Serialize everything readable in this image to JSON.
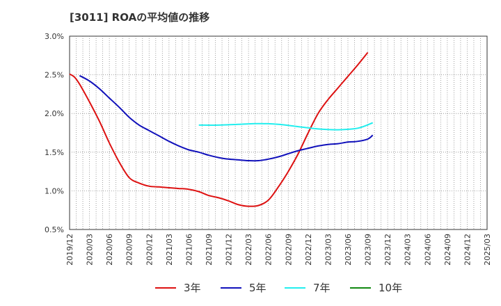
{
  "chart_data": {
    "type": "line",
    "title": "[3011]  ROAの平均値の推移",
    "y_ticks": [
      "3.0%",
      "2.5%",
      "2.0%",
      "1.5%",
      "1.0%",
      "0.5%"
    ],
    "ylim": [
      0.5,
      3.0
    ],
    "x_ticks": [
      "2019/12",
      "2020/03",
      "2020/06",
      "2020/09",
      "2020/12",
      "2021/03",
      "2021/06",
      "2021/09",
      "2021/12",
      "2022/03",
      "2022/06",
      "2022/09",
      "2022/12",
      "2023/03",
      "2023/06",
      "2023/09",
      "2023/12",
      "2024/03",
      "2024/06",
      "2024/09",
      "2024/12",
      "2025/03"
    ],
    "grid": true,
    "legend_position": "bottom",
    "series": [
      {
        "name": "3年",
        "color": "#dd1111",
        "points": [
          [
            0,
            2.51
          ],
          [
            0.5,
            2.47
          ],
          [
            1,
            2.38
          ],
          [
            2,
            2.15
          ],
          [
            3,
            1.9
          ],
          [
            4,
            1.62
          ],
          [
            5,
            1.37
          ],
          [
            6,
            1.17
          ],
          [
            7,
            1.1
          ],
          [
            8,
            1.06
          ],
          [
            9,
            1.05
          ],
          [
            10,
            1.04
          ],
          [
            11,
            1.03
          ],
          [
            12,
            1.02
          ],
          [
            13,
            0.99
          ],
          [
            14,
            0.94
          ],
          [
            15,
            0.91
          ],
          [
            16,
            0.87
          ],
          [
            17,
            0.82
          ],
          [
            18,
            0.8
          ],
          [
            19,
            0.81
          ],
          [
            20,
            0.88
          ],
          [
            21,
            1.05
          ],
          [
            22,
            1.25
          ],
          [
            23,
            1.48
          ],
          [
            24,
            1.75
          ],
          [
            25,
            2.0
          ],
          [
            26,
            2.18
          ],
          [
            27,
            2.33
          ],
          [
            28,
            2.48
          ],
          [
            29,
            2.63
          ],
          [
            30,
            2.79
          ]
        ]
      },
      {
        "name": "5年",
        "color": "#1111bb",
        "points": [
          [
            1,
            2.49
          ],
          [
            2,
            2.42
          ],
          [
            3,
            2.32
          ],
          [
            4,
            2.2
          ],
          [
            5,
            2.08
          ],
          [
            6,
            1.95
          ],
          [
            7,
            1.85
          ],
          [
            8,
            1.78
          ],
          [
            9,
            1.71
          ],
          [
            10,
            1.64
          ],
          [
            11,
            1.58
          ],
          [
            12,
            1.53
          ],
          [
            13,
            1.5
          ],
          [
            14,
            1.46
          ],
          [
            15,
            1.43
          ],
          [
            16,
            1.41
          ],
          [
            17,
            1.4
          ],
          [
            18,
            1.39
          ],
          [
            19,
            1.39
          ],
          [
            20,
            1.41
          ],
          [
            21,
            1.44
          ],
          [
            22,
            1.48
          ],
          [
            23,
            1.52
          ],
          [
            24,
            1.55
          ],
          [
            25,
            1.58
          ],
          [
            26,
            1.6
          ],
          [
            27,
            1.61
          ],
          [
            28,
            1.63
          ],
          [
            29,
            1.64
          ],
          [
            30,
            1.67
          ],
          [
            30.5,
            1.72
          ]
        ]
      },
      {
        "name": "7年",
        "color": "#22eeee",
        "points": [
          [
            13,
            1.85
          ],
          [
            15,
            1.85
          ],
          [
            17,
            1.86
          ],
          [
            19,
            1.87
          ],
          [
            21,
            1.86
          ],
          [
            23,
            1.83
          ],
          [
            25,
            1.8
          ],
          [
            27,
            1.79
          ],
          [
            29,
            1.81
          ],
          [
            30.5,
            1.88
          ]
        ]
      },
      {
        "name": "10年",
        "color": "#118811",
        "points": []
      }
    ]
  }
}
